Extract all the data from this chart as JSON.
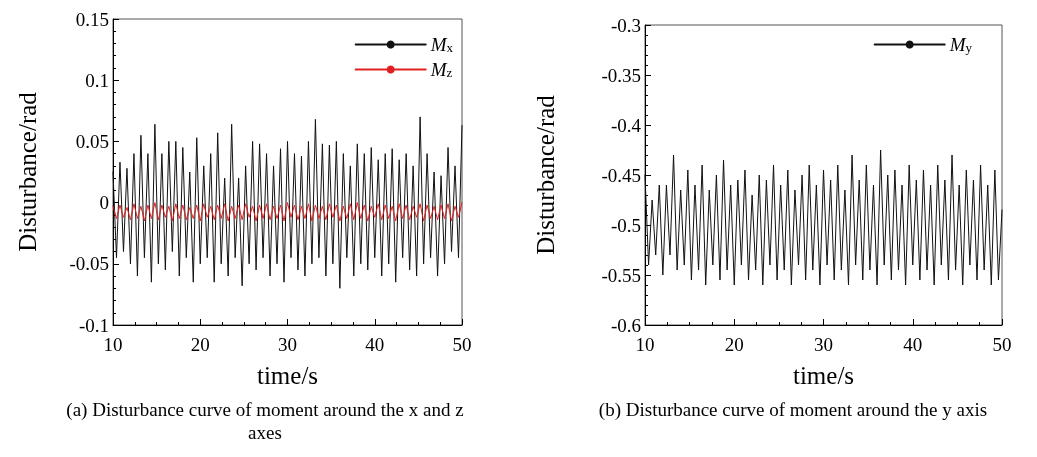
{
  "chart_data": [
    {
      "type": "line",
      "title": "(a) Disturbance curve of moment around the x and z axes",
      "xlabel": "time/s",
      "ylabel": "Disturbance/rad",
      "legend": "top right",
      "grid": false,
      "marker": "none",
      "line_style": "solid",
      "xlim": [
        10,
        50
      ],
      "xticks": [
        10,
        20,
        30,
        40,
        50
      ],
      "ylim": [
        -0.1,
        0.15
      ],
      "yticks": [
        -0.1,
        -0.05,
        0,
        0.05,
        0.1,
        0.15
      ],
      "x": [
        10,
        10.4,
        10.8,
        11.2,
        11.6,
        12,
        12.4,
        12.8,
        13.2,
        13.6,
        14,
        14.4,
        14.8,
        15.2,
        15.6,
        16,
        16.4,
        16.8,
        17.2,
        17.6,
        18,
        18.4,
        18.8,
        19.2,
        19.6,
        20,
        20.4,
        20.8,
        21.2,
        21.6,
        22,
        22.4,
        22.8,
        23.2,
        23.6,
        24,
        24.4,
        24.8,
        25.2,
        25.6,
        26,
        26.4,
        26.8,
        27.2,
        27.6,
        28,
        28.4,
        28.8,
        29.2,
        29.6,
        30,
        30.4,
        30.8,
        31.2,
        31.6,
        32,
        32.4,
        32.8,
        33.2,
        33.6,
        34,
        34.4,
        34.8,
        35.2,
        35.6,
        36,
        36.4,
        36.8,
        37.2,
        37.6,
        38,
        38.4,
        38.8,
        39.2,
        39.6,
        40,
        40.4,
        40.8,
        41.2,
        41.6,
        42,
        42.4,
        42.8,
        43.2,
        43.6,
        44,
        44.4,
        44.8,
        45.2,
        45.6,
        46,
        46.4,
        46.8,
        47.2,
        47.6,
        48,
        48.4,
        48.8,
        49.2,
        49.6,
        50
      ],
      "series": [
        {
          "name": "M$_{x}$",
          "color": "#111111",
          "values": [
            0.025,
            -0.045,
            0.033,
            -0.04,
            0.028,
            -0.05,
            0.04,
            -0.06,
            0.055,
            -0.045,
            0.04,
            -0.065,
            0.064,
            -0.05,
            0.04,
            -0.055,
            0.05,
            -0.04,
            0.05,
            -0.06,
            0.045,
            -0.045,
            0.025,
            -0.065,
            0.053,
            -0.05,
            0.03,
            -0.045,
            0.04,
            -0.065,
            0.057,
            -0.05,
            0.02,
            -0.06,
            0.064,
            -0.045,
            0.02,
            -0.068,
            0.03,
            -0.05,
            0.05,
            -0.055,
            0.048,
            -0.045,
            0.04,
            -0.06,
            0.03,
            -0.05,
            0.044,
            -0.065,
            0.05,
            -0.045,
            0.04,
            -0.055,
            0.038,
            -0.06,
            0.05,
            -0.05,
            0.068,
            -0.045,
            0.048,
            -0.06,
            0.047,
            -0.05,
            0.05,
            -0.07,
            0.04,
            -0.045,
            0.03,
            -0.06,
            0.048,
            -0.05,
            0.04,
            -0.055,
            0.045,
            -0.045,
            0.035,
            -0.06,
            0.04,
            -0.05,
            0.044,
            -0.065,
            0.035,
            -0.045,
            0.04,
            -0.055,
            0.03,
            -0.06,
            0.07,
            -0.05,
            0.04,
            -0.045,
            0.025,
            -0.06,
            0.022,
            -0.05,
            0.045,
            -0.04,
            0.03,
            -0.045,
            0.063
          ]
        },
        {
          "name": "M$_{z}$",
          "color": "#e02020",
          "values": [
            -0.003,
            -0.013,
            -0.002,
            -0.012,
            -0.004,
            -0.014,
            -0.001,
            -0.013,
            -0.003,
            -0.015,
            -0.002,
            -0.013,
            0,
            -0.014,
            -0.002,
            -0.012,
            -0.003,
            -0.015,
            -0.001,
            -0.013,
            -0.002,
            -0.014,
            -0.004,
            -0.013,
            -0.002,
            -0.015,
            -0.001,
            -0.012,
            -0.003,
            -0.014,
            -0.002,
            -0.013,
            -0.001,
            -0.015,
            -0.003,
            -0.013,
            -0.002,
            -0.014,
            -0.001,
            -0.012,
            -0.003,
            -0.015,
            -0.002,
            -0.013,
            -0.001,
            -0.014,
            -0.003,
            -0.013,
            -0.002,
            -0.015,
            0,
            -0.012,
            -0.002,
            -0.014,
            -0.003,
            -0.013,
            -0.001,
            -0.015,
            -0.002,
            -0.013,
            -0.003,
            -0.014,
            -0.001,
            -0.012,
            -0.002,
            -0.015,
            -0.003,
            -0.013,
            -0.001,
            -0.014,
            0,
            -0.013,
            -0.002,
            -0.015,
            -0.003,
            -0.012,
            -0.001,
            -0.014,
            -0.002,
            -0.013,
            -0.003,
            -0.015,
            -0.001,
            -0.013,
            -0.002,
            -0.014,
            -0.003,
            -0.012,
            -0.001,
            -0.015,
            -0.002,
            -0.013,
            -0.003,
            -0.014,
            -0.002,
            -0.013,
            -0.001,
            -0.015,
            -0.003,
            -0.012,
            0
          ]
        }
      ]
    },
    {
      "type": "line",
      "title": "(b) Disturbance curve of moment around the y axis",
      "xlabel": "time/s",
      "ylabel": "Disturbance/rad",
      "legend": "top right",
      "grid": false,
      "marker": "none",
      "line_style": "solid",
      "xlim": [
        10,
        50
      ],
      "xticks": [
        10,
        20,
        30,
        40,
        50
      ],
      "ylim": [
        -0.6,
        -0.3
      ],
      "yticks": [
        -0.6,
        -0.55,
        -0.5,
        -0.45,
        -0.4,
        -0.35,
        -0.3
      ],
      "x": [
        10,
        10.4,
        10.8,
        11.2,
        11.6,
        12,
        12.4,
        12.8,
        13.2,
        13.6,
        14,
        14.4,
        14.8,
        15.2,
        15.6,
        16,
        16.4,
        16.8,
        17.2,
        17.6,
        18,
        18.4,
        18.8,
        19.2,
        19.6,
        20,
        20.4,
        20.8,
        21.2,
        21.6,
        22,
        22.4,
        22.8,
        23.2,
        23.6,
        24,
        24.4,
        24.8,
        25.2,
        25.6,
        26,
        26.4,
        26.8,
        27.2,
        27.6,
        28,
        28.4,
        28.8,
        29.2,
        29.6,
        30,
        30.4,
        30.8,
        31.2,
        31.6,
        32,
        32.4,
        32.8,
        33.2,
        33.6,
        34,
        34.4,
        34.8,
        35.2,
        35.6,
        36,
        36.4,
        36.8,
        37.2,
        37.6,
        38,
        38.4,
        38.8,
        39.2,
        39.6,
        40,
        40.4,
        40.8,
        41.2,
        41.6,
        42,
        42.4,
        42.8,
        43.2,
        43.6,
        44,
        44.4,
        44.8,
        45.2,
        45.6,
        46,
        46.4,
        46.8,
        47.2,
        47.6,
        48,
        48.4,
        48.8,
        49.2,
        49.6,
        50
      ],
      "series": [
        {
          "name": "M$_{y}$",
          "color": "#111111",
          "values": [
            -0.45,
            -0.54,
            -0.475,
            -0.53,
            -0.46,
            -0.55,
            -0.46,
            -0.53,
            -0.43,
            -0.545,
            -0.465,
            -0.54,
            -0.445,
            -0.555,
            -0.46,
            -0.545,
            -0.44,
            -0.56,
            -0.465,
            -0.54,
            -0.45,
            -0.555,
            -0.435,
            -0.545,
            -0.46,
            -0.56,
            -0.455,
            -0.54,
            -0.445,
            -0.555,
            -0.47,
            -0.545,
            -0.45,
            -0.56,
            -0.455,
            -0.54,
            -0.44,
            -0.555,
            -0.46,
            -0.545,
            -0.445,
            -0.56,
            -0.465,
            -0.54,
            -0.45,
            -0.555,
            -0.44,
            -0.545,
            -0.46,
            -0.56,
            -0.445,
            -0.54,
            -0.455,
            -0.555,
            -0.44,
            -0.545,
            -0.465,
            -0.56,
            -0.43,
            -0.54,
            -0.455,
            -0.555,
            -0.44,
            -0.545,
            -0.46,
            -0.56,
            -0.425,
            -0.54,
            -0.45,
            -0.555,
            -0.445,
            -0.545,
            -0.46,
            -0.56,
            -0.44,
            -0.54,
            -0.455,
            -0.555,
            -0.445,
            -0.545,
            -0.46,
            -0.56,
            -0.44,
            -0.54,
            -0.455,
            -0.555,
            -0.43,
            -0.545,
            -0.46,
            -0.56,
            -0.445,
            -0.54,
            -0.455,
            -0.555,
            -0.44,
            -0.545,
            -0.46,
            -0.56,
            -0.445,
            -0.555,
            -0.485
          ]
        }
      ]
    }
  ]
}
